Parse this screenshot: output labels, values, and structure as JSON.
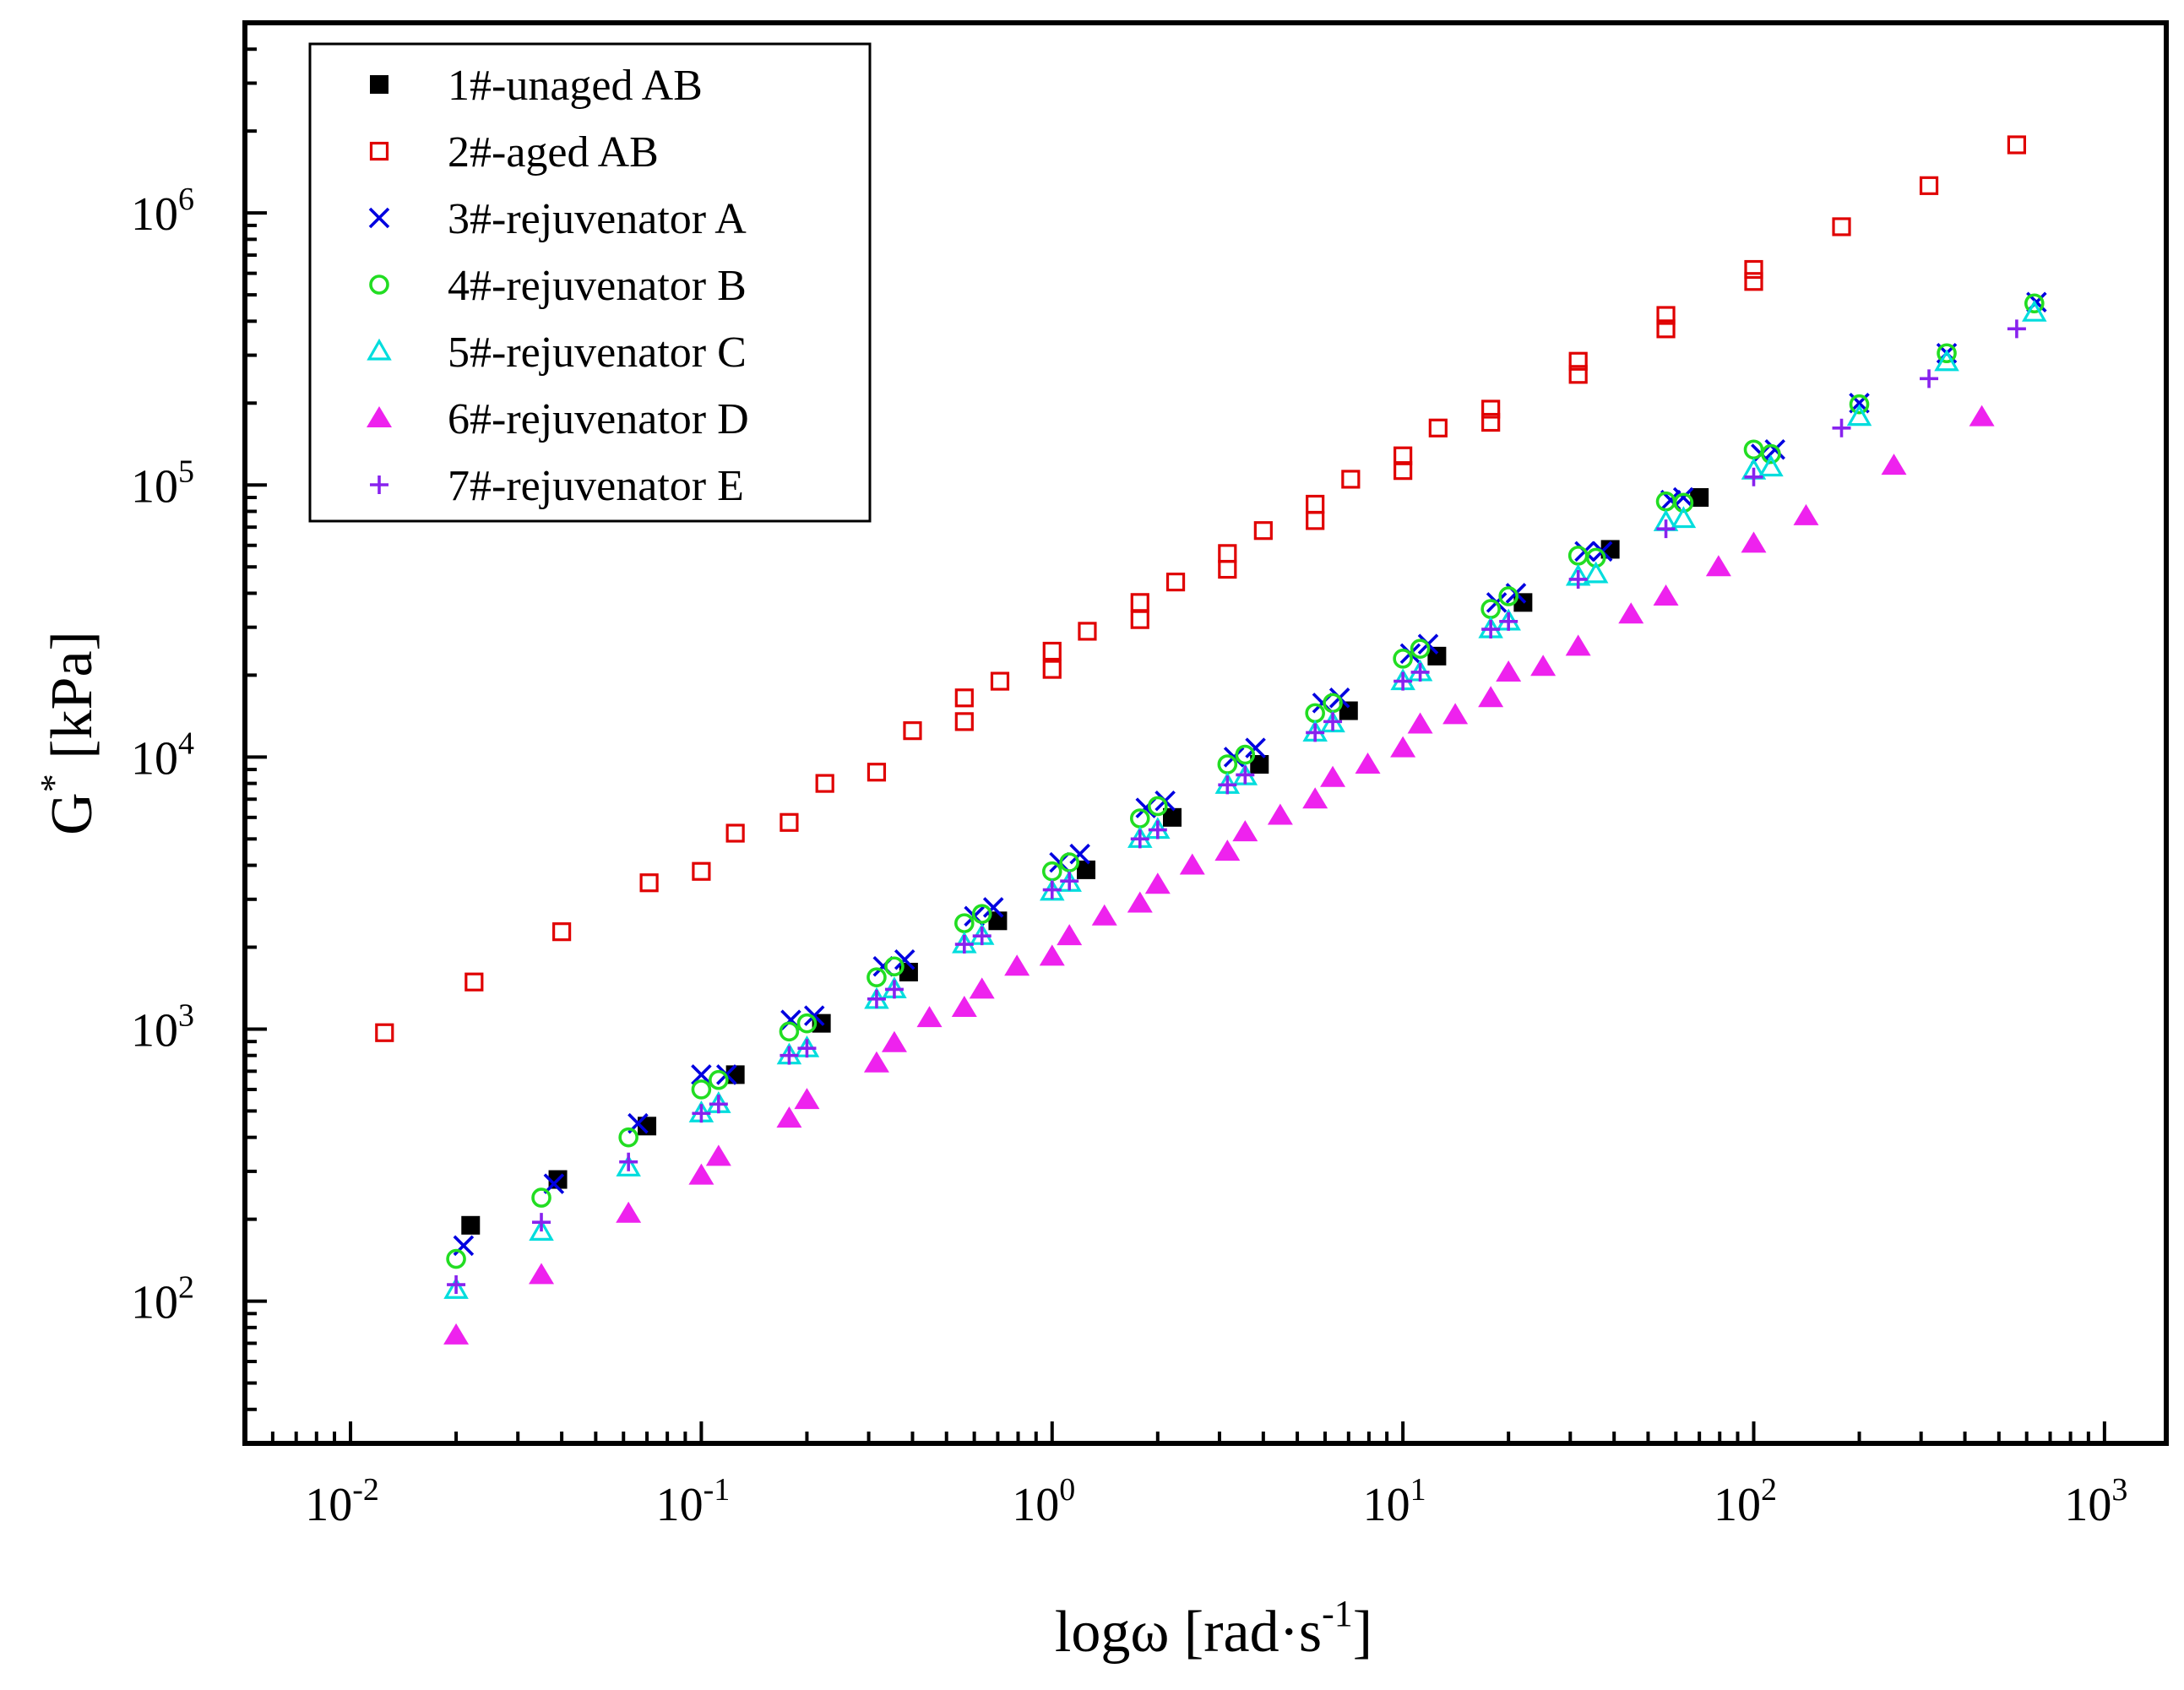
{
  "chart_data": {
    "type": "scatter",
    "title": "",
    "xlabel": {
      "base": "logω [rad·s",
      "sup": "-1",
      "tail": "]"
    },
    "ylabel": {
      "base": "G",
      "sup": "*",
      "tail": " [kPa]"
    },
    "xscale": "log",
    "yscale": "log",
    "xlim": [
      0.005,
      1500
    ],
    "ylim": [
      30,
      5000000
    ],
    "grid": false,
    "legend_position": "top-left",
    "x_ticks": [
      {
        "value": 0.01,
        "base": "10",
        "exp": "-2"
      },
      {
        "value": 0.1,
        "base": "10",
        "exp": "-1"
      },
      {
        "value": 1,
        "base": "10",
        "exp": "0"
      },
      {
        "value": 10,
        "base": "10",
        "exp": "1"
      },
      {
        "value": 100,
        "base": "10",
        "exp": "2"
      },
      {
        "value": 1000,
        "base": "10",
        "exp": "3"
      }
    ],
    "y_ticks": [
      {
        "value": 100,
        "base": "10",
        "exp": "2"
      },
      {
        "value": 1000,
        "base": "10",
        "exp": "3"
      },
      {
        "value": 10000,
        "base": "10",
        "exp": "4"
      },
      {
        "value": 100000,
        "base": "10",
        "exp": "5"
      },
      {
        "value": 1000000,
        "base": "10",
        "exp": "6"
      }
    ],
    "series": [
      {
        "name": "1#-unaged AB",
        "marker": "square-filled",
        "color": "#000000",
        "x": [
          0.022,
          0.039,
          0.07,
          0.125,
          0.22,
          0.39,
          0.7,
          1.25,
          2.2,
          3.9,
          7.0,
          12.5,
          22,
          39,
          70
        ],
        "y": [
          190,
          280,
          440,
          680,
          1050,
          1620,
          2500,
          3850,
          6000,
          9400,
          14800,
          23500,
          37000,
          58000,
          90000
        ]
      },
      {
        "name": "2#-aged AB",
        "marker": "square-open",
        "color": "#e00000",
        "x": [
          0.0125,
          0.0225,
          0.04,
          0.071,
          0.1,
          0.125,
          0.178,
          0.225,
          0.316,
          0.4,
          0.562,
          0.562,
          0.71,
          1.0,
          1.0,
          1.26,
          1.78,
          1.78,
          2.25,
          3.16,
          3.16,
          4.0,
          5.62,
          5.62,
          7.1,
          10,
          10,
          12.6,
          17.8,
          17.8,
          31.6,
          31.6,
          56.2,
          56.2,
          100,
          100,
          178,
          316,
          562
        ],
        "y": [
          970,
          1490,
          2280,
          3450,
          3800,
          5250,
          5750,
          8000,
          8800,
          12500,
          13500,
          16500,
          19000,
          21000,
          24500,
          29000,
          32000,
          37000,
          44000,
          49000,
          56000,
          68000,
          74000,
          85000,
          105000,
          113000,
          128000,
          162000,
          170000,
          190000,
          255000,
          285000,
          375000,
          420000,
          560000,
          620000,
          890000,
          1260000,
          1780000
        ]
      },
      {
        "name": "3#-rejuvenator A",
        "marker": "x",
        "color": "#0000e0",
        "x": [
          0.021,
          0.038,
          0.066,
          0.1,
          0.118,
          0.18,
          0.21,
          0.33,
          0.38,
          0.6,
          0.68,
          1.05,
          1.2,
          1.85,
          2.1,
          3.3,
          3.8,
          5.9,
          6.6,
          10.5,
          11.8,
          18.5,
          21,
          33,
          37,
          58,
          63,
          105,
          115,
          200,
          355,
          640
        ],
        "y": [
          160,
          270,
          450,
          680,
          680,
          1080,
          1120,
          1700,
          1800,
          2600,
          2800,
          4100,
          4400,
          6500,
          6900,
          10000,
          10800,
          15800,
          16500,
          24000,
          26000,
          37000,
          40000,
          57000,
          57000,
          88000,
          90000,
          130000,
          135000,
          200000,
          305000,
          470000
        ]
      },
      {
        "name": "4#-rejuvenator B",
        "marker": "circle-open",
        "color": "#22dd22",
        "x": [
          0.02,
          0.035,
          0.062,
          0.1,
          0.112,
          0.178,
          0.2,
          0.316,
          0.355,
          0.562,
          0.631,
          1.0,
          1.12,
          1.78,
          2.0,
          3.16,
          3.55,
          5.62,
          6.31,
          10,
          11.2,
          17.8,
          20,
          31.6,
          35.5,
          56.2,
          63.1,
          100,
          112,
          200,
          355,
          631
        ],
        "y": [
          143,
          240,
          400,
          600,
          650,
          980,
          1050,
          1550,
          1700,
          2450,
          2650,
          3800,
          4100,
          5950,
          6600,
          9400,
          10200,
          14500,
          15800,
          23000,
          25000,
          35000,
          39000,
          55000,
          54000,
          87000,
          86000,
          135000,
          130000,
          198000,
          305000,
          465000
        ]
      },
      {
        "name": "5#-rejuvenator C",
        "marker": "triangle-open",
        "color": "#00dddd",
        "x": [
          0.02,
          0.035,
          0.062,
          0.1,
          0.112,
          0.178,
          0.2,
          0.316,
          0.355,
          0.562,
          0.631,
          1.0,
          1.12,
          1.78,
          2.0,
          3.16,
          3.55,
          5.62,
          6.31,
          10,
          11.2,
          17.8,
          20,
          31.6,
          35.5,
          56.2,
          63.1,
          100,
          112,
          200,
          355,
          631
        ],
        "y": [
          110,
          180,
          310,
          490,
          530,
          800,
          850,
          1280,
          1400,
          2050,
          2200,
          3200,
          3450,
          5000,
          5400,
          7900,
          8500,
          12300,
          13300,
          19000,
          20500,
          29500,
          31500,
          46000,
          47000,
          73000,
          75000,
          113000,
          116000,
          178000,
          283000,
          430000
        ]
      },
      {
        "name": "6#-rejuvenator D",
        "marker": "triangle-filled",
        "color": "#ee22ee",
        "x": [
          0.02,
          0.035,
          0.062,
          0.1,
          0.112,
          0.178,
          0.2,
          0.316,
          0.355,
          0.447,
          0.562,
          0.631,
          0.794,
          1.0,
          1.12,
          1.41,
          1.78,
          2.0,
          2.51,
          3.16,
          3.55,
          4.47,
          5.62,
          6.31,
          7.94,
          10,
          11.2,
          14.1,
          17.8,
          20,
          25.1,
          31.6,
          44.7,
          56.2,
          79.4,
          100,
          141,
          251,
          447
        ],
        "y": [
          75,
          125,
          210,
          290,
          340,
          470,
          550,
          750,
          890,
          1100,
          1200,
          1400,
          1700,
          1850,
          2200,
          2600,
          2900,
          3400,
          4000,
          4500,
          5300,
          6100,
          7000,
          8400,
          9400,
          10800,
          13200,
          14300,
          16500,
          20500,
          21500,
          25500,
          33500,
          39000,
          50000,
          61000,
          77000,
          118000,
          178000
        ]
      },
      {
        "name": "7#-rejuvenator E",
        "marker": "plus",
        "color": "#8822ee",
        "x": [
          0.02,
          0.035,
          0.062,
          0.1,
          0.112,
          0.178,
          0.2,
          0.316,
          0.355,
          0.562,
          0.631,
          1.0,
          1.12,
          1.78,
          2.0,
          3.16,
          3.55,
          5.62,
          6.31,
          10,
          11.2,
          17.8,
          20,
          31.6,
          56.2,
          100,
          178,
          316,
          562
        ],
        "y": [
          115,
          195,
          325,
          490,
          530,
          800,
          850,
          1290,
          1400,
          2050,
          2200,
          3250,
          3500,
          5000,
          5400,
          7900,
          8600,
          12300,
          13500,
          19000,
          20500,
          29500,
          31500,
          45000,
          69000,
          107000,
          162000,
          246000,
          375000
        ]
      }
    ]
  }
}
